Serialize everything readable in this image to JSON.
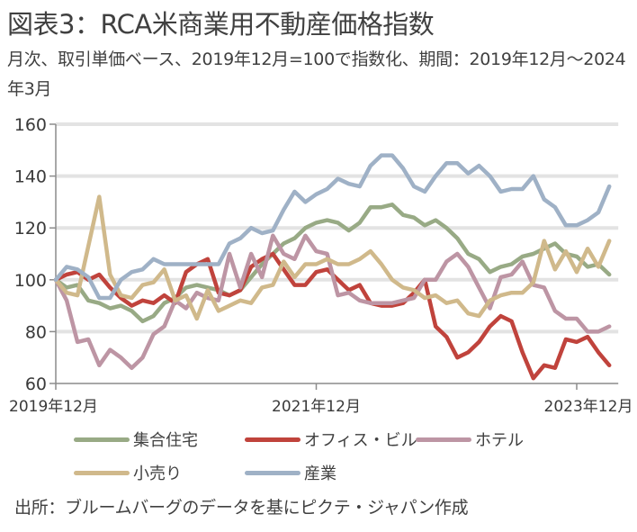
{
  "title": "図表3：RCA米商業用不動産価格指数",
  "subtitle": "月次、取引単価ベース、2019年12月=100で指数化、期間：2019年12月～2024年3月",
  "source": "出所：ブルームバーグのデータを基にピクテ・ジャパン作成",
  "chart_data": {
    "type": "line",
    "title": "RCA米商業用不動産価格指数",
    "xlabel": "",
    "ylabel": "",
    "ylim": [
      60,
      160
    ],
    "yticks": [
      60,
      80,
      100,
      120,
      140,
      160
    ],
    "grid": true,
    "legend_position": "bottom",
    "x_start": "2019年12月",
    "x_end": "2024年3月",
    "x_count": 52,
    "xticks": [
      {
        "index": 0,
        "label": "2019年12月"
      },
      {
        "index": 24,
        "label": "2021年12月"
      },
      {
        "index": 48,
        "label": "2023年12月"
      }
    ],
    "series": [
      {
        "name": "集合住宅",
        "color": "#98aa85",
        "values": [
          100,
          97,
          98,
          92,
          91,
          89,
          90,
          88,
          84,
          86,
          91,
          93,
          97,
          98,
          97,
          96,
          94,
          96,
          101,
          106,
          110,
          114,
          116,
          120,
          122,
          123,
          122,
          119,
          122,
          128,
          128,
          129,
          125,
          124,
          121,
          123,
          120,
          116,
          110,
          108,
          103,
          105,
          106,
          109,
          110,
          112,
          114,
          110,
          109,
          105,
          106,
          102
        ]
      },
      {
        "name": "オフィス・ビル",
        "color": "#c0433c",
        "values": [
          100,
          102,
          103,
          100,
          102,
          97,
          93,
          90,
          92,
          91,
          94,
          91,
          103,
          106,
          108,
          95,
          94,
          96,
          105,
          108,
          110,
          104,
          98,
          98,
          103,
          104,
          100,
          96,
          98,
          91,
          90,
          90,
          91,
          95,
          100,
          82,
          78,
          70,
          72,
          76,
          82,
          86,
          84,
          72,
          62,
          67,
          66,
          77,
          76,
          78,
          72,
          67
        ]
      },
      {
        "name": "ホテル",
        "color": "#bd95a4",
        "values": [
          100,
          92,
          76,
          77,
          67,
          73,
          70,
          66,
          70,
          79,
          82,
          92,
          89,
          95,
          93,
          92,
          110,
          97,
          110,
          101,
          117,
          110,
          108,
          117,
          111,
          110,
          94,
          95,
          92,
          91,
          91,
          91,
          92,
          93,
          100,
          100,
          107,
          110,
          105,
          97,
          89,
          101,
          102,
          107,
          98,
          97,
          88,
          85,
          85,
          80,
          80,
          82
        ]
      },
      {
        "name": "小売り",
        "color": "#d0b98b",
        "values": [
          100,
          95,
          94,
          113,
          132,
          102,
          94,
          93,
          98,
          99,
          104,
          92,
          94,
          85,
          96,
          88,
          90,
          92,
          91,
          97,
          98,
          107,
          101,
          106,
          106,
          108,
          106,
          106,
          108,
          111,
          106,
          100,
          97,
          96,
          93,
          94,
          91,
          92,
          87,
          86,
          92,
          94,
          95,
          95,
          99,
          115,
          104,
          111,
          103,
          112,
          105,
          115
        ]
      },
      {
        "name": "産業",
        "color": "#9fb1c6",
        "values": [
          100,
          105,
          104,
          101,
          93,
          93,
          100,
          103,
          104,
          108,
          106,
          106,
          106,
          106,
          106,
          106,
          114,
          116,
          120,
          118,
          119,
          127,
          134,
          130,
          133,
          135,
          139,
          137,
          136,
          144,
          148,
          148,
          143,
          136,
          134,
          140,
          145,
          145,
          141,
          144,
          140,
          134,
          135,
          135,
          140,
          131,
          128,
          121,
          121,
          123,
          126,
          136
        ]
      }
    ]
  }
}
